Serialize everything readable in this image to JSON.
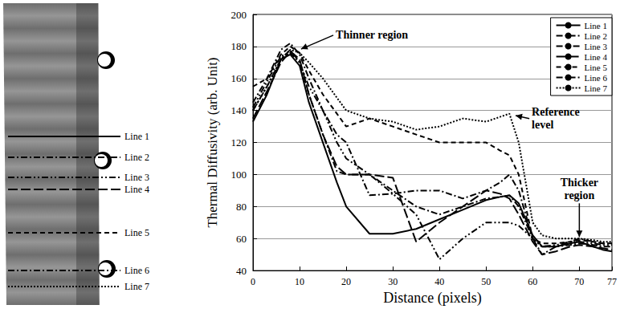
{
  "chart_data": {
    "type": "line",
    "xlabel": "Distance (pixels)",
    "ylabel": "Thermal Diffusivity (arb. Unit)",
    "xlim": [
      0,
      77
    ],
    "xticks": [
      0,
      10,
      20,
      30,
      40,
      50,
      60,
      70,
      77
    ],
    "ylim": [
      40,
      200
    ],
    "yticks": [
      40,
      60,
      80,
      100,
      120,
      140,
      160,
      180,
      200
    ],
    "grid": true,
    "legend": "upper right",
    "x": [
      0,
      3,
      6,
      8,
      10,
      12,
      15,
      18,
      20,
      25,
      30,
      35,
      40,
      45,
      50,
      53,
      55,
      57,
      60,
      62,
      65,
      68,
      70,
      73,
      75,
      77
    ],
    "series": [
      {
        "name": "Line 1",
        "color": "#000000",
        "line_style": "solid",
        "values": [
          133,
          150,
          172,
          175,
          168,
          145,
          120,
          95,
          80,
          63,
          63,
          66,
          72,
          78,
          84,
          86,
          87,
          82,
          62,
          55,
          55,
          57,
          58,
          55,
          53,
          52
        ]
      },
      {
        "name": "Line 2",
        "color": "#000000",
        "line_style": "dashdot",
        "values": [
          140,
          155,
          172,
          178,
          170,
          150,
          125,
          102,
          100,
          100,
          90,
          80,
          75,
          80,
          85,
          86,
          87,
          80,
          60,
          55,
          55,
          56,
          57,
          56,
          55,
          55
        ]
      },
      {
        "name": "Line 3",
        "color": "#000000",
        "line_style": "dashdotdot",
        "values": [
          142,
          158,
          174,
          176,
          170,
          155,
          140,
          120,
          110,
          100,
          88,
          75,
          47,
          60,
          70,
          70,
          70,
          68,
          60,
          55,
          56,
          58,
          58,
          57,
          56,
          56
        ]
      },
      {
        "name": "Line 4",
        "color": "#000000",
        "line_style": "longdash",
        "values": [
          135,
          152,
          170,
          177,
          172,
          150,
          125,
          105,
          100,
          100,
          98,
          58,
          70,
          80,
          90,
          88,
          85,
          75,
          58,
          50,
          52,
          55,
          56,
          55,
          54,
          53
        ]
      },
      {
        "name": "Line 5",
        "color": "#000000",
        "line_style": "dash",
        "values": [
          155,
          160,
          175,
          180,
          176,
          165,
          150,
          138,
          130,
          135,
          130,
          125,
          120,
          120,
          120,
          115,
          112,
          100,
          60,
          57,
          57,
          58,
          59,
          58,
          57,
          57
        ]
      },
      {
        "name": "Line 6",
        "color": "#000000",
        "line_style": "dashdot",
        "values": [
          145,
          160,
          178,
          182,
          175,
          160,
          140,
          125,
          120,
          87,
          88,
          90,
          90,
          85,
          90,
          95,
          100,
          90,
          60,
          50,
          55,
          58,
          60,
          58,
          57,
          57
        ]
      },
      {
        "name": "Line 7",
        "color": "#000000",
        "line_style": "dotted",
        "values": [
          140,
          155,
          172,
          178,
          176,
          170,
          160,
          148,
          140,
          135,
          133,
          128,
          130,
          135,
          133,
          136,
          138,
          120,
          70,
          62,
          60,
          60,
          60,
          59,
          58,
          58
        ]
      }
    ],
    "annotations": [
      {
        "text": "Thinner region",
        "x": 10,
        "y": 178
      },
      {
        "text": "Reference level",
        "x": 56,
        "y": 137
      },
      {
        "text": "Thicker region",
        "x": 70,
        "y": 60
      }
    ]
  }
}
